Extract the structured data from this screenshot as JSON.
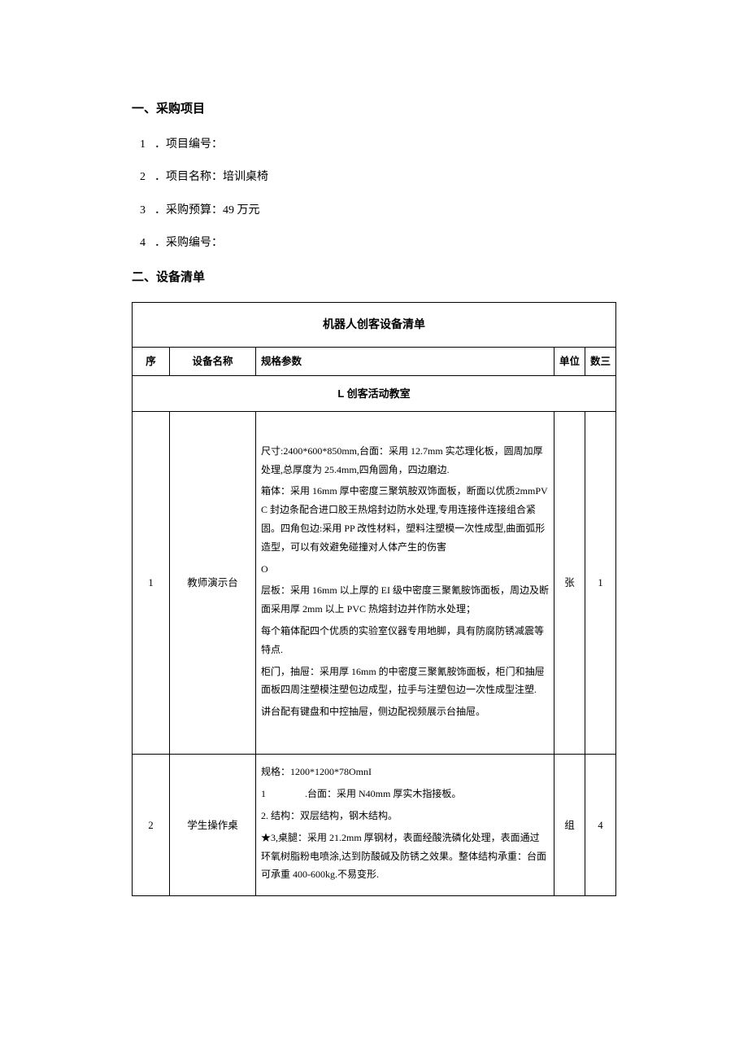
{
  "sections": {
    "procurement": {
      "heading": "一、采购项目",
      "items": [
        {
          "num": "1",
          "label": "．项目编号：",
          "value": ""
        },
        {
          "num": "2",
          "label": "．项目名称：",
          "value": "培训桌椅"
        },
        {
          "num": "3",
          "label": "．采购预算：",
          "value": "49 万元"
        },
        {
          "num": "4",
          "label": "．采购编号：",
          "value": ""
        }
      ]
    },
    "equipment": {
      "heading": "二、设备清单"
    }
  },
  "table": {
    "title": "机器人创客设备清单",
    "columns": {
      "seq": "序",
      "name": "设备名称",
      "spec": "规格参数",
      "unit": "单位",
      "qty": "数三"
    },
    "section_row": "L 创客活动教室",
    "rows": [
      {
        "seq": "1",
        "name": "教师演示台",
        "spec_lines": [
          "尺寸:2400*600*850mm,台面：采用 12.7mm 实芯理化板，圆周加厚处理,总厚度为 25.4mm,四角圆角，四边磨边.",
          "箱体：采用 16mm 厚中密度三聚筑胺双饰面板，断面以优质2mmPVC 封边条配合进口胶王热熔封边防水处理,专用连接件连接组合紧固。四角包边:采用 PP 改性材料，塑料注塑模一次性成型,曲面弧形造型，可以有效避免碰撞对人体产生的伤害",
          "O",
          "层板：采用 16mm 以上厚的 EI 级中密度三聚氰胺饰面板，周边及断面采用厚 2mm 以上 PVC 热熔封边并作防水处理；",
          "每个箱体配四个优质的实验室仪器专用地脚，具有防腐防锈减震等特点.",
          "柜门，抽屉：采用厚 16mm 的中密度三聚氰胺饰面板，柜门和抽屉面板四周注塑模注塑包边成型，拉手与注塑包边一次性成型注塑.",
          "讲台配有键盘和中控抽屉，侧边配视频展示台抽屉。"
        ],
        "unit": "张",
        "qty": "1",
        "tall": true
      },
      {
        "seq": "2",
        "name": "学生操作桌",
        "spec_lines": [
          "规格：1200*1200*78OmnI",
          "1　　　　.台面：采用 N40mm 厚实木指接板。",
          "2. 结构：双层结构，钢木结构。",
          "★3,桌腿：采用 21.2mm 厚钢材，表面经酸洗磷化处理，表面通过环氧树脂粉电喷涂,达到防酸碱及防锈之效果。整体结构承重：台面可承重 400-600kg.不易变形."
        ],
        "unit": "组",
        "qty": "4",
        "tall": false
      }
    ]
  },
  "colors": {
    "text": "#000000",
    "background": "#ffffff",
    "border": "#000000"
  }
}
